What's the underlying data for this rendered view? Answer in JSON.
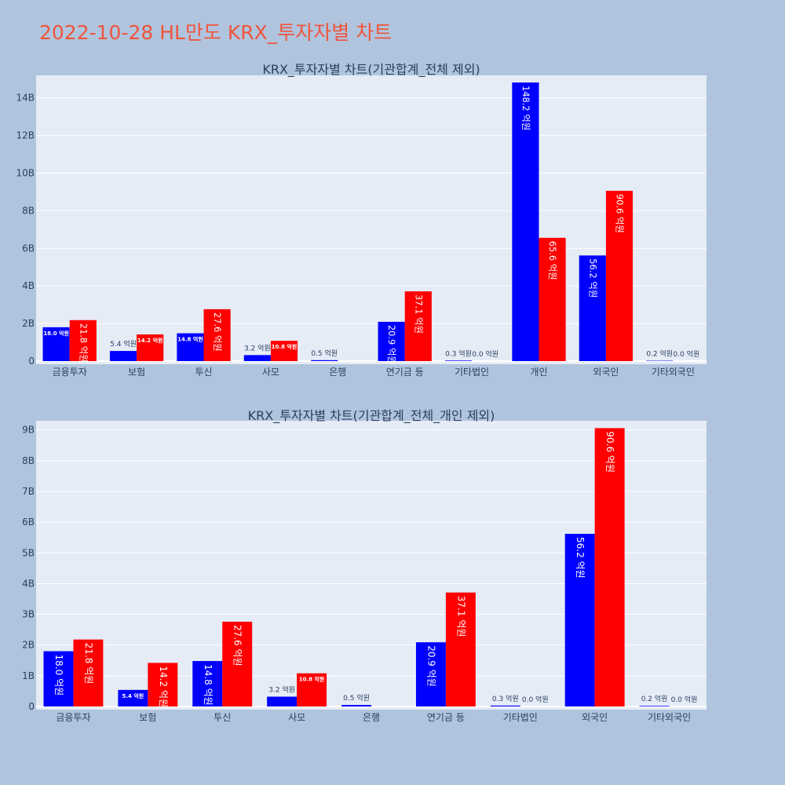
{
  "page": {
    "title": "2022-10-28 HL만도 KRX_투자자별 차트"
  },
  "colors": {
    "buy": "#0000ff",
    "sell": "#ff0000",
    "title": "#ef553b",
    "background": "#b0c4de",
    "plot": "#e5ecf6"
  },
  "chart_data": [
    {
      "type": "bar",
      "title": "KRX_투자자별 차트(기관합계_전체 제외)",
      "categories": [
        "금융투자",
        "보험",
        "투신",
        "사모",
        "은행",
        "연기금 등",
        "기타법인",
        "개인",
        "외국인",
        "기타외국인"
      ],
      "series": [
        {
          "color": "#0000ff",
          "values": [
            1.8,
            0.54,
            1.48,
            0.32,
            0.05,
            2.09,
            0.03,
            14.82,
            5.62,
            0.02
          ],
          "labels": [
            "18.0 억원",
            "5.4 억원",
            "14.8 억원",
            "3.2 억원",
            "0.5 억원",
            "20.9 억원",
            "0.3 억원",
            "148.2 억원",
            "56.2 억원",
            "0.2 억원"
          ]
        },
        {
          "color": "#ff0000",
          "values": [
            2.18,
            1.42,
            2.76,
            1.08,
            0,
            3.71,
            0,
            6.56,
            9.06,
            0
          ],
          "labels": [
            "21.8 억원",
            "14.2 억원",
            "27.6 억원",
            "10.8 억원",
            "",
            "37.1 억원",
            "0.0 억원",
            "65.6 억원",
            "90.6 억원",
            "0.0 억원"
          ]
        }
      ],
      "ylim": [
        0,
        15.2
      ],
      "yticks": [
        0,
        2,
        4,
        6,
        8,
        10,
        12,
        14
      ],
      "ytick_labels": [
        "0",
        "2B",
        "4B",
        "6B",
        "8B",
        "10B",
        "12B",
        "14B"
      ],
      "grid": true
    },
    {
      "type": "bar",
      "title": "KRX_투자자별 차트(기관합계_전체_개인 제외)",
      "categories": [
        "금융투자",
        "보험",
        "투신",
        "사모",
        "은행",
        "연기금 등",
        "기타법인",
        "외국인",
        "기타외국인"
      ],
      "series": [
        {
          "color": "#0000ff",
          "values": [
            1.8,
            0.54,
            1.48,
            0.32,
            0.05,
            2.09,
            0.03,
            5.62,
            0.02
          ],
          "labels": [
            "18.0 억원",
            "5.4 억원",
            "14.8 억원",
            "3.2 억원",
            "0.5 억원",
            "20.9 억원",
            "0.3 억원",
            "56.2 억원",
            "0.2 억원"
          ]
        },
        {
          "color": "#ff0000",
          "values": [
            2.18,
            1.42,
            2.76,
            1.08,
            0,
            3.71,
            0,
            9.06,
            0
          ],
          "labels": [
            "21.8 억원",
            "14.2 억원",
            "27.6 억원",
            "10.8 억원",
            "",
            "37.1 억원",
            "0.0 억원",
            "90.6 억원",
            "0.0 억원"
          ]
        }
      ],
      "ylim": [
        0,
        9.3
      ],
      "yticks": [
        0,
        1,
        2,
        3,
        4,
        5,
        6,
        7,
        8,
        9
      ],
      "ytick_labels": [
        "0",
        "1B",
        "2B",
        "3B",
        "4B",
        "5B",
        "6B",
        "7B",
        "8B",
        "9B"
      ],
      "grid": true
    }
  ]
}
